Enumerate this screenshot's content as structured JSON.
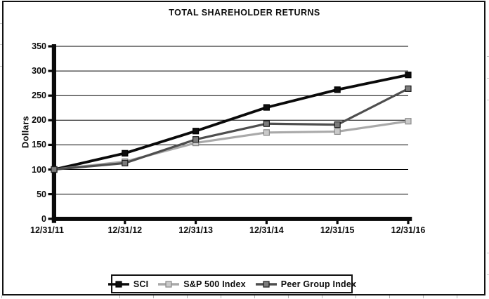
{
  "chart_data": {
    "type": "line",
    "title": "TOTAL SHAREHOLDER RETURNS",
    "ylabel": "Dollars",
    "xlabel": "",
    "x_labels": [
      "12/31/11",
      "12/31/12",
      "12/31/13",
      "12/31/14",
      "12/31/15",
      "12/31/16"
    ],
    "y_ticks": [
      0,
      50,
      100,
      150,
      200,
      250,
      300,
      350
    ],
    "ylim": [
      0,
      350
    ],
    "grid": "horizontal",
    "legend_position": "bottom",
    "series": [
      {
        "name": "SCI",
        "color": "#0a0a0a",
        "marker": "square",
        "marker_fill": "#0d0d0d",
        "marker_edge": "#000000",
        "values": [
          100,
          133,
          178,
          226,
          262,
          292
        ]
      },
      {
        "name": "S&P 500 Index",
        "color": "#a9a9a9",
        "marker": "square",
        "marker_fill": "#c9c9c9",
        "marker_edge": "#898989",
        "values": [
          100,
          116,
          154,
          175,
          177,
          198
        ]
      },
      {
        "name": "Peer Group Index",
        "color": "#4e4e4e",
        "marker": "square",
        "marker_fill": "#7b7b7b",
        "marker_edge": "#1c1c1c",
        "values": [
          100,
          113,
          161,
          193,
          191,
          264
        ]
      }
    ]
  }
}
